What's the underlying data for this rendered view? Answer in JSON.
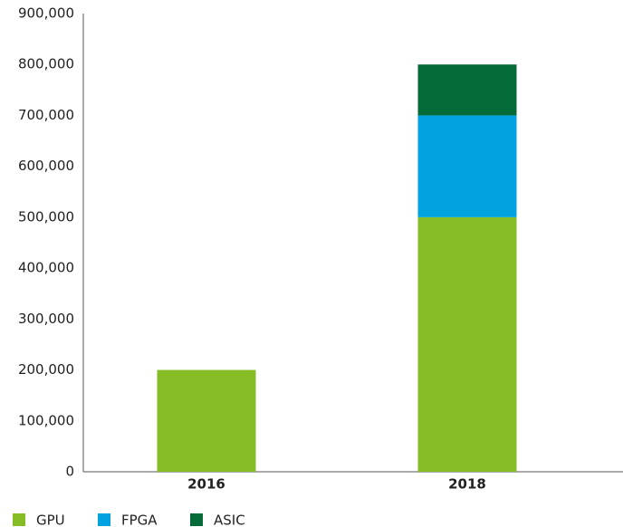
{
  "chart_data": {
    "type": "bar",
    "stacked": true,
    "categories": [
      "2016",
      "2018"
    ],
    "series": [
      {
        "name": "GPU",
        "color": "#86bc25",
        "values": [
          200000,
          500000
        ]
      },
      {
        "name": "FPGA",
        "color": "#00a3e0",
        "values": [
          null,
          200000
        ]
      },
      {
        "name": "ASIC",
        "color": "#046a38",
        "values": [
          null,
          100000
        ]
      }
    ],
    "ylim": [
      0,
      900000
    ],
    "yticks": [
      0,
      {
        "value": 100000,
        "label": "100,000"
      },
      {
        "value": 200000,
        "label": "200,000"
      },
      {
        "value": 300000,
        "label": "300,000"
      },
      {
        "value": 400000,
        "label": "400,000"
      },
      {
        "value": 500000,
        "label": "500,000"
      },
      {
        "value": 600000,
        "label": "600,000"
      },
      {
        "value": 700000,
        "label": "700,000"
      },
      {
        "value": 800000,
        "label": "800,000"
      },
      {
        "value": 900000,
        "label": "900,000"
      }
    ],
    "legend": "bottom-left"
  }
}
